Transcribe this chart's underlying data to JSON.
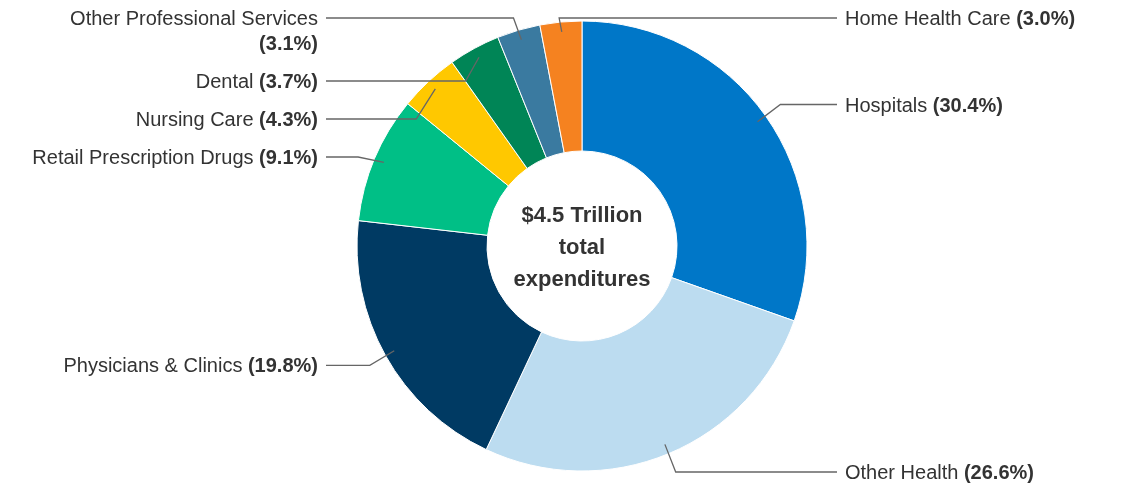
{
  "chart_data": {
    "type": "donut",
    "title": "$4.5 Trillion total expenditures",
    "categories": [
      "Hospitals",
      "Other Health",
      "Physicians & Clinics",
      "Retail Prescription Drugs",
      "Nursing Care",
      "Dental",
      "Other Professional Services",
      "Home Health Care"
    ],
    "values": [
      30.4,
      26.6,
      19.8,
      9.1,
      4.3,
      3.7,
      3.1,
      3.0
    ],
    "value_labels": [
      "(30.4%)",
      "(26.6%)",
      "(19.8%)",
      "(9.1%)",
      "(4.3%)",
      "(3.7%)",
      "(3.1%)",
      "(3.0%)"
    ],
    "colors": [
      "#0077c8",
      "#bcdcf0",
      "#003a63",
      "#00bf86",
      "#ffc800",
      "#008556",
      "#3a7aa0",
      "#f58220"
    ]
  }
}
